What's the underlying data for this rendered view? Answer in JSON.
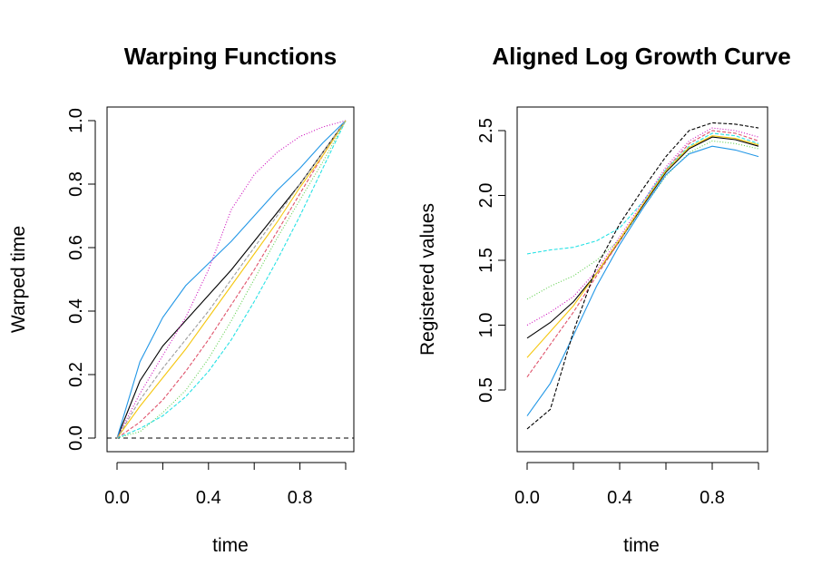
{
  "chart_data": [
    {
      "type": "line",
      "title": "Warping Functions",
      "xlabel": "time",
      "ylabel": "Warped time",
      "xlim": [
        0,
        1
      ],
      "ylim": [
        0,
        1
      ],
      "x_ticks": [
        0.0,
        0.2,
        0.4,
        0.6,
        0.8,
        1.0
      ],
      "x_tick_labels": [
        "0.0",
        "",
        "0.4",
        "",
        "0.8",
        ""
      ],
      "y_ticks": [
        0.0,
        0.2,
        0.4,
        0.6,
        0.8,
        1.0
      ],
      "y_tick_labels": [
        "0.0",
        "0.2",
        "0.4",
        "0.6",
        "0.8",
        "1.0"
      ],
      "reference_line": {
        "y": 0,
        "style": "dashed"
      },
      "grid": false,
      "series_summary": "Many monotone warping curves from (0,0) to (1,1), spread around the diagonal",
      "series": [
        {
          "color": "#000000",
          "x": [
            0,
            0.1,
            0.2,
            0.3,
            0.4,
            0.5,
            0.6,
            0.7,
            0.8,
            0.9,
            1.0
          ],
          "y": [
            0,
            0.18,
            0.29,
            0.37,
            0.45,
            0.53,
            0.62,
            0.71,
            0.8,
            0.9,
            1.0
          ]
        },
        {
          "color": "#df536b",
          "x": [
            0,
            0.1,
            0.2,
            0.3,
            0.4,
            0.5,
            0.6,
            0.7,
            0.8,
            0.9,
            1.0
          ],
          "y": [
            0,
            0.05,
            0.12,
            0.21,
            0.31,
            0.42,
            0.53,
            0.65,
            0.77,
            0.89,
            1.0
          ]
        },
        {
          "color": "#61d04f",
          "x": [
            0,
            0.1,
            0.2,
            0.3,
            0.4,
            0.5,
            0.6,
            0.7,
            0.8,
            0.9,
            1.0
          ],
          "y": [
            0,
            0.02,
            0.08,
            0.15,
            0.25,
            0.37,
            0.5,
            0.63,
            0.75,
            0.87,
            1.0
          ]
        },
        {
          "color": "#2297e6",
          "x": [
            0,
            0.1,
            0.2,
            0.3,
            0.4,
            0.5,
            0.6,
            0.7,
            0.8,
            0.9,
            1.0
          ],
          "y": [
            0,
            0.24,
            0.38,
            0.48,
            0.55,
            0.62,
            0.7,
            0.78,
            0.85,
            0.93,
            1.0
          ]
        },
        {
          "color": "#28e2e5",
          "x": [
            0,
            0.1,
            0.2,
            0.3,
            0.4,
            0.5,
            0.6,
            0.7,
            0.8,
            0.9,
            1.0
          ],
          "y": [
            0,
            0.03,
            0.07,
            0.13,
            0.21,
            0.31,
            0.43,
            0.56,
            0.7,
            0.85,
            1.0
          ]
        },
        {
          "color": "#cd0bbc",
          "x": [
            0,
            0.1,
            0.2,
            0.3,
            0.4,
            0.5,
            0.6,
            0.7,
            0.8,
            0.9,
            1.0
          ],
          "y": [
            0,
            0.14,
            0.26,
            0.38,
            0.53,
            0.72,
            0.83,
            0.9,
            0.95,
            0.98,
            1.0
          ]
        },
        {
          "color": "#f5c710",
          "x": [
            0,
            0.1,
            0.2,
            0.3,
            0.4,
            0.5,
            0.6,
            0.7,
            0.8,
            0.9,
            1.0
          ],
          "y": [
            0,
            0.1,
            0.19,
            0.28,
            0.38,
            0.48,
            0.58,
            0.68,
            0.79,
            0.89,
            1.0
          ]
        },
        {
          "color": "#9e9e9e",
          "x": [
            0,
            0.1,
            0.2,
            0.3,
            0.4,
            0.5,
            0.6,
            0.7,
            0.8,
            0.9,
            1.0
          ],
          "y": [
            0,
            0.12,
            0.22,
            0.31,
            0.4,
            0.5,
            0.6,
            0.7,
            0.8,
            0.9,
            1.0
          ]
        }
      ]
    },
    {
      "type": "line",
      "title": "Aligned Log Growth Curve",
      "xlabel": "time",
      "ylabel": "Registered  values",
      "xlim": [
        0,
        1
      ],
      "ylim": [
        0.12,
        2.67
      ],
      "x_ticks": [
        0.0,
        0.2,
        0.4,
        0.6,
        0.8,
        1.0
      ],
      "x_tick_labels": [
        "0.0",
        "",
        "0.4",
        "",
        "0.8",
        ""
      ],
      "y_ticks": [
        0.5,
        1.0,
        1.5,
        2.0,
        2.5
      ],
      "y_tick_labels": [
        "0.5",
        "1.0",
        "1.5",
        "2.0",
        "2.5"
      ],
      "grid": false,
      "series_summary": "Many aligned log growth curves starting between about 0.2 and 1.6, rising steeply between 0.2 and 0.7, plateauing near 2.3 to 2.55",
      "series": [
        {
          "color": "#000000",
          "x": [
            0,
            0.1,
            0.2,
            0.3,
            0.4,
            0.5,
            0.6,
            0.7,
            0.8,
            0.9,
            1.0
          ],
          "y": [
            0.9,
            1.02,
            1.18,
            1.4,
            1.65,
            1.92,
            2.18,
            2.36,
            2.45,
            2.43,
            2.38
          ]
        },
        {
          "color": "#df536b",
          "x": [
            0,
            0.1,
            0.2,
            0.3,
            0.4,
            0.5,
            0.6,
            0.7,
            0.8,
            0.9,
            1.0
          ],
          "y": [
            0.6,
            0.85,
            1.1,
            1.38,
            1.65,
            1.93,
            2.2,
            2.4,
            2.5,
            2.48,
            2.42
          ]
        },
        {
          "color": "#61d04f",
          "x": [
            0,
            0.1,
            0.2,
            0.3,
            0.4,
            0.5,
            0.6,
            0.7,
            0.8,
            0.9,
            1.0
          ],
          "y": [
            1.2,
            1.3,
            1.38,
            1.5,
            1.66,
            1.9,
            2.15,
            2.33,
            2.42,
            2.4,
            2.36
          ]
        },
        {
          "color": "#2297e6",
          "x": [
            0,
            0.1,
            0.2,
            0.3,
            0.4,
            0.5,
            0.6,
            0.7,
            0.8,
            0.9,
            1.0
          ],
          "y": [
            0.3,
            0.55,
            0.92,
            1.3,
            1.62,
            1.9,
            2.16,
            2.32,
            2.38,
            2.35,
            2.3
          ]
        },
        {
          "color": "#28e2e5",
          "x": [
            0,
            0.1,
            0.2,
            0.3,
            0.4,
            0.5,
            0.6,
            0.7,
            0.8,
            0.9,
            1.0
          ],
          "y": [
            1.55,
            1.58,
            1.6,
            1.65,
            1.75,
            1.95,
            2.2,
            2.38,
            2.48,
            2.46,
            2.4
          ]
        },
        {
          "color": "#cd0bbc",
          "x": [
            0,
            0.1,
            0.2,
            0.3,
            0.4,
            0.5,
            0.6,
            0.7,
            0.8,
            0.9,
            1.0
          ],
          "y": [
            1.0,
            1.1,
            1.22,
            1.42,
            1.68,
            1.95,
            2.22,
            2.42,
            2.52,
            2.5,
            2.45
          ]
        },
        {
          "color": "#f5c710",
          "x": [
            0,
            0.1,
            0.2,
            0.3,
            0.4,
            0.5,
            0.6,
            0.7,
            0.8,
            0.9,
            1.0
          ],
          "y": [
            0.75,
            0.95,
            1.15,
            1.4,
            1.66,
            1.93,
            2.19,
            2.37,
            2.46,
            2.44,
            2.39
          ]
        },
        {
          "color": "#000000",
          "x": [
            0,
            0.1,
            0.2,
            0.3,
            0.4,
            0.5,
            0.6,
            0.7,
            0.8,
            0.9,
            1.0
          ],
          "y": [
            0.2,
            0.35,
            0.95,
            1.45,
            1.78,
            2.05,
            2.3,
            2.5,
            2.56,
            2.55,
            2.52
          ]
        }
      ]
    }
  ]
}
